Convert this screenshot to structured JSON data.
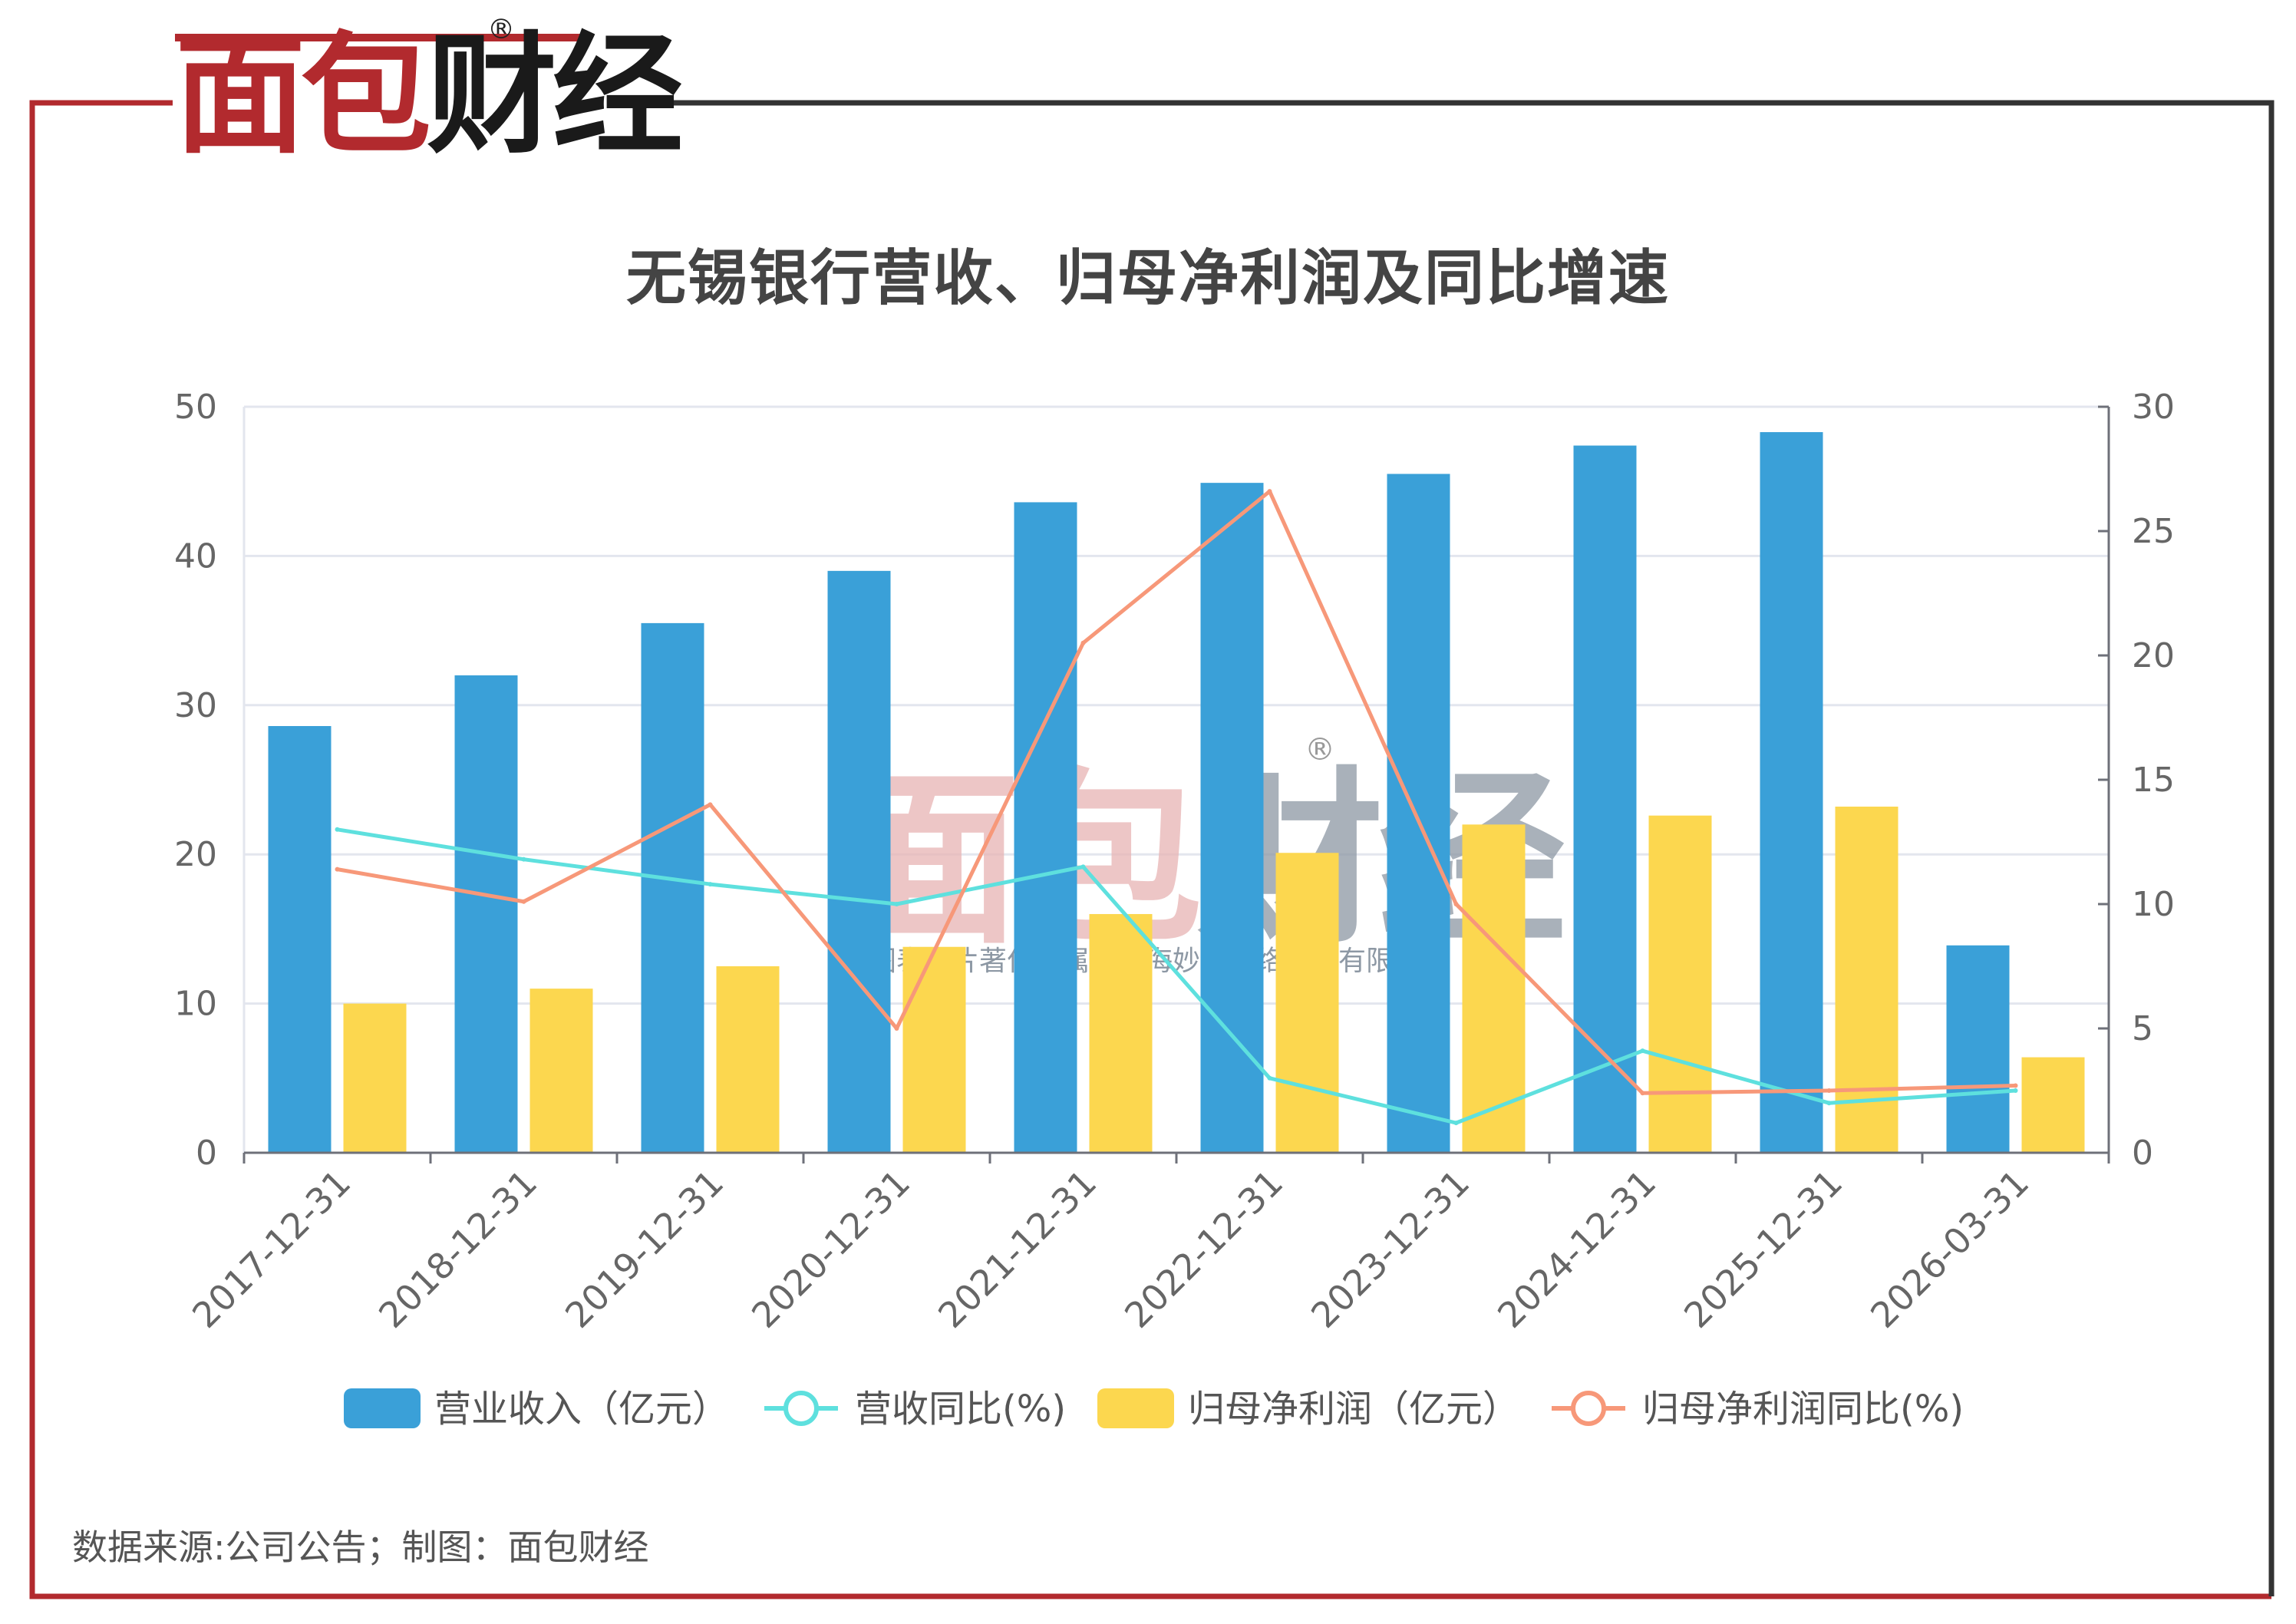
{
  "brand": {
    "logo_text_red": "面包",
    "logo_text_dark": "财经",
    "registered_mark": "®",
    "accent_color": "#b22a2e"
  },
  "title": "无锡银行营收、归母净利润及同比增速",
  "source_note": "数据来源:公司公告；制图：面包财经",
  "watermark": {
    "text": "面包财经",
    "registered_mark": "®",
    "copyright": "本图表图片著作权属于上海妙探网络科技有限公司"
  },
  "chart_data": {
    "type": "bar",
    "categories": [
      "2017-12-31",
      "2018-12-31",
      "2019-12-31",
      "2020-12-31",
      "2021-12-31",
      "2022-12-31",
      "2023-12-31",
      "2024-12-31",
      "2025-12-31",
      "2026-03-31"
    ],
    "y_left": {
      "range": [
        0,
        50
      ],
      "ticks": [
        "0",
        "10",
        "20",
        "30",
        "40",
        "50"
      ]
    },
    "y_right": {
      "range": [
        0,
        30
      ],
      "ticks": [
        "0",
        "5",
        "10",
        "15",
        "20",
        "25",
        "30"
      ]
    },
    "grid": true,
    "legend_position": "bottom",
    "series": [
      {
        "name": "营业收入（亿元）",
        "type": "bar",
        "axis": "left",
        "color": "#3aa0d8",
        "values": [
          28.6,
          32.0,
          35.5,
          39.0,
          43.6,
          44.9,
          45.5,
          47.4,
          48.3,
          13.9
        ]
      },
      {
        "name": "营收同比(%)",
        "type": "line",
        "axis": "right",
        "color": "#5ee0de",
        "values": [
          13.0,
          11.8,
          10.8,
          10.0,
          11.5,
          3.0,
          1.2,
          4.1,
          2.0,
          2.5
        ]
      },
      {
        "name": "归母净利润（亿元）",
        "type": "bar",
        "axis": "left",
        "color": "#fcd74f",
        "values": [
          10.0,
          11.0,
          12.5,
          13.8,
          16.0,
          20.1,
          22.0,
          22.6,
          23.2,
          6.4
        ]
      },
      {
        "name": "归母净利润同比(%)",
        "type": "line",
        "axis": "right",
        "color": "#f79879",
        "values": [
          11.4,
          10.1,
          14.0,
          5.0,
          20.5,
          26.6,
          10.0,
          2.4,
          2.5,
          2.7
        ]
      }
    ]
  }
}
